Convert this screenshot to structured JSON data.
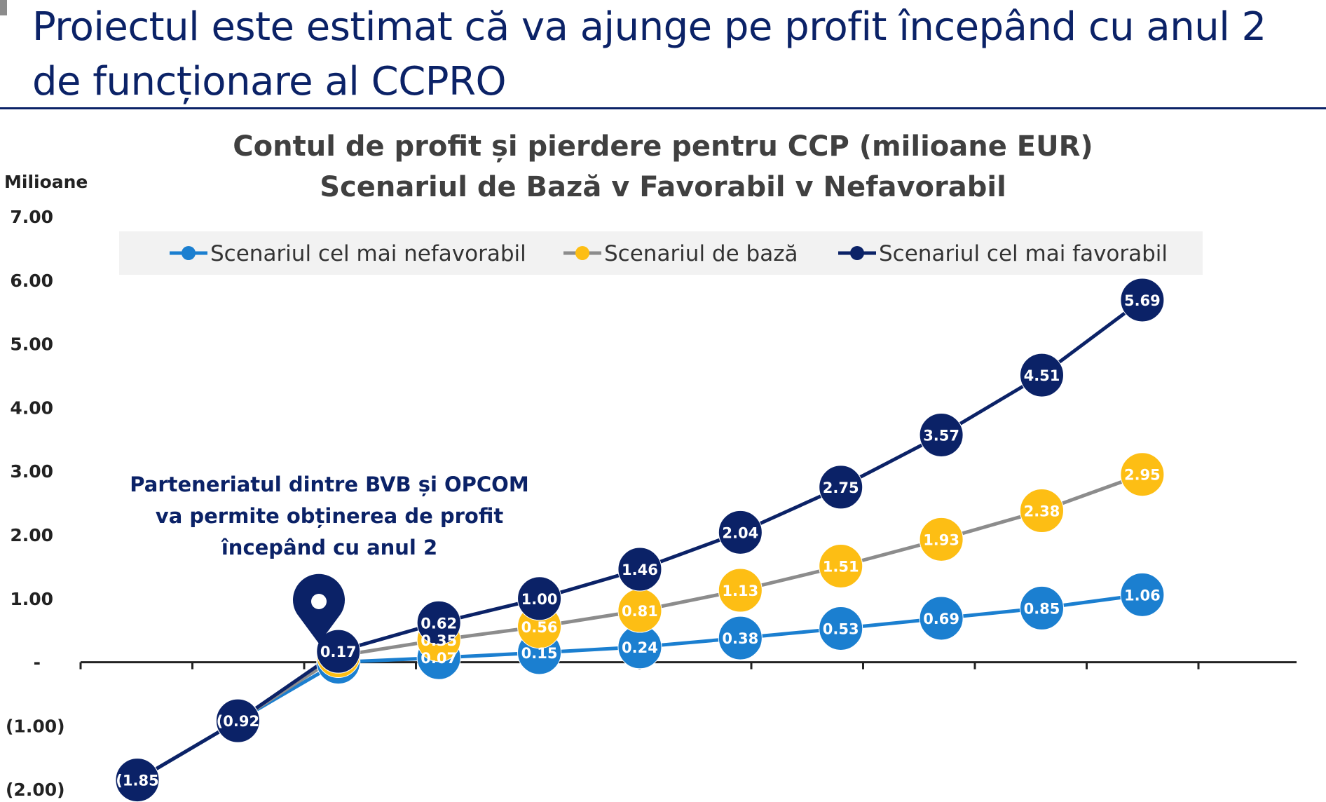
{
  "slide": {
    "title_line1": "Proiectul este estimat că va ajunge pe profit începând cu anul 2",
    "title_line2": "de funcționare al CCPRO"
  },
  "annotation": {
    "lines": [
      "Parteneriatul dintre BVB și OPCOM",
      "va permite obținerea de profit",
      "începând cu anul 2"
    ],
    "icon": "map-pin-icon"
  },
  "chart_data": {
    "type": "line",
    "title": "Contul de profit și pierdere pentru CCP (milioane EUR)",
    "subtitle": "Scenariul de Bază v Favorabil v Nefavorabil",
    "ylabel": "Milioane",
    "ylim": [
      -2,
      7
    ],
    "y_ticks": [
      -2,
      -1,
      0,
      1,
      2,
      3,
      4,
      5,
      6,
      7
    ],
    "y_tick_labels": [
      "(2.00)",
      "(1.00)",
      "-",
      "1.00",
      "2.00",
      "3.00",
      "4.00",
      "5.00",
      "6.00",
      "7.00"
    ],
    "x": [
      1,
      2,
      3,
      4,
      5,
      6,
      7,
      8,
      9,
      10,
      11
    ],
    "legend_position": "top",
    "grid": false,
    "series": [
      {
        "name": "Scenariul cel mai nefavorabil",
        "color": "#1b7fd0",
        "line_color": "#1b7fd0",
        "values": [
          -1.85,
          -0.92,
          0.0,
          0.07,
          0.15,
          0.24,
          0.38,
          0.53,
          0.69,
          0.85,
          1.06
        ],
        "labels": [
          "",
          "",
          "",
          "0.07",
          "0.15",
          "0.24",
          "0.38",
          "0.53",
          "0.69",
          "0.85",
          "1.06"
        ]
      },
      {
        "name": "Scenariul de bază",
        "color": "#fdbe14",
        "line_color": "#8c8c8c",
        "values": [
          -1.85,
          -0.92,
          0.1,
          0.35,
          0.56,
          0.81,
          1.13,
          1.51,
          1.93,
          2.38,
          2.95
        ],
        "labels": [
          "(1.85",
          "(0.92",
          "",
          "0.35",
          "0.56",
          "0.81",
          "1.13",
          "1.51",
          "1.93",
          "2.38",
          "2.95"
        ]
      },
      {
        "name": "Scenariul cel mai favorabil",
        "color": "#0b2267",
        "line_color": "#0b2267",
        "values": [
          -1.85,
          -0.92,
          0.17,
          0.62,
          1.0,
          1.46,
          2.04,
          2.75,
          3.57,
          4.51,
          5.69
        ],
        "labels": [
          "",
          "",
          "0.17",
          "0.62",
          "1.00",
          "1.46",
          "2.04",
          "2.75",
          "3.57",
          "4.51",
          "5.69"
        ]
      }
    ]
  }
}
